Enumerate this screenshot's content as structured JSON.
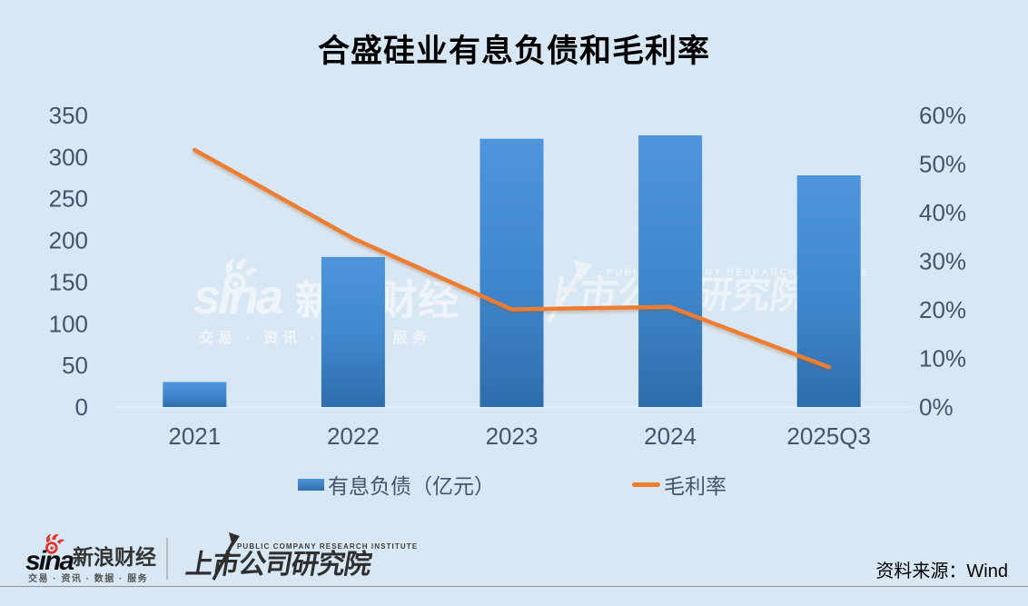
{
  "title": "合盛硅业有息负债和毛利率",
  "chart_data": {
    "type": "bar+line combo",
    "categories": [
      "2021",
      "2022",
      "2023",
      "2024",
      "2025Q3"
    ],
    "series": [
      {
        "name": "有息负债（亿元）",
        "type": "bar",
        "axis": "left",
        "values": [
          30,
          180,
          322,
          326,
          278
        ]
      },
      {
        "name": "毛利率",
        "type": "line",
        "axis": "right",
        "values": [
          52.9,
          34.7,
          20.1,
          20.6,
          8.2
        ]
      }
    ],
    "left_axis": {
      "min": 0,
      "max": 350,
      "step": 50,
      "tick_labels": [
        "0",
        "50",
        "100",
        "150",
        "200",
        "250",
        "300",
        "350"
      ]
    },
    "right_axis": {
      "min": 0,
      "max": 60,
      "step": 10,
      "tick_labels": [
        "0%",
        "10%",
        "20%",
        "30%",
        "40%",
        "50%",
        "60%"
      ]
    },
    "grid": false,
    "legend_position": "bottom"
  },
  "legend": {
    "bar_label": "有息负债（亿元）",
    "line_label": "毛利率"
  },
  "watermark_center": {
    "sina_wordmark": "sina",
    "sina_brand": "新浪财经",
    "sina_services": "交易 · 资讯 · 数据 · 服务",
    "pcri_en": "PUBLIC COMPANY RESEARCH INSTITUTE",
    "pcri_cn": "上市公司研究院"
  },
  "footer": {
    "sina_wordmark": "sina",
    "sina_brand": "新浪财经",
    "sina_services": "交易 · 资讯 · 数据 · 服务",
    "pcri_en": "PUBLIC COMPANY RESEARCH INSTITUTE",
    "pcri_cn": "上市公司研究院",
    "source": "资料来源：Wind"
  },
  "colors": {
    "background": "#d8e7f4",
    "bar_top": "#4e95dc",
    "bar_mid": "#3f87cd",
    "bar_bottom": "#2e6dab",
    "line": "#ED7D31",
    "axis_text": "#44546A",
    "axis_line": "#e9eff6",
    "title_text": "#000000",
    "sina_red": "#e2352b"
  }
}
